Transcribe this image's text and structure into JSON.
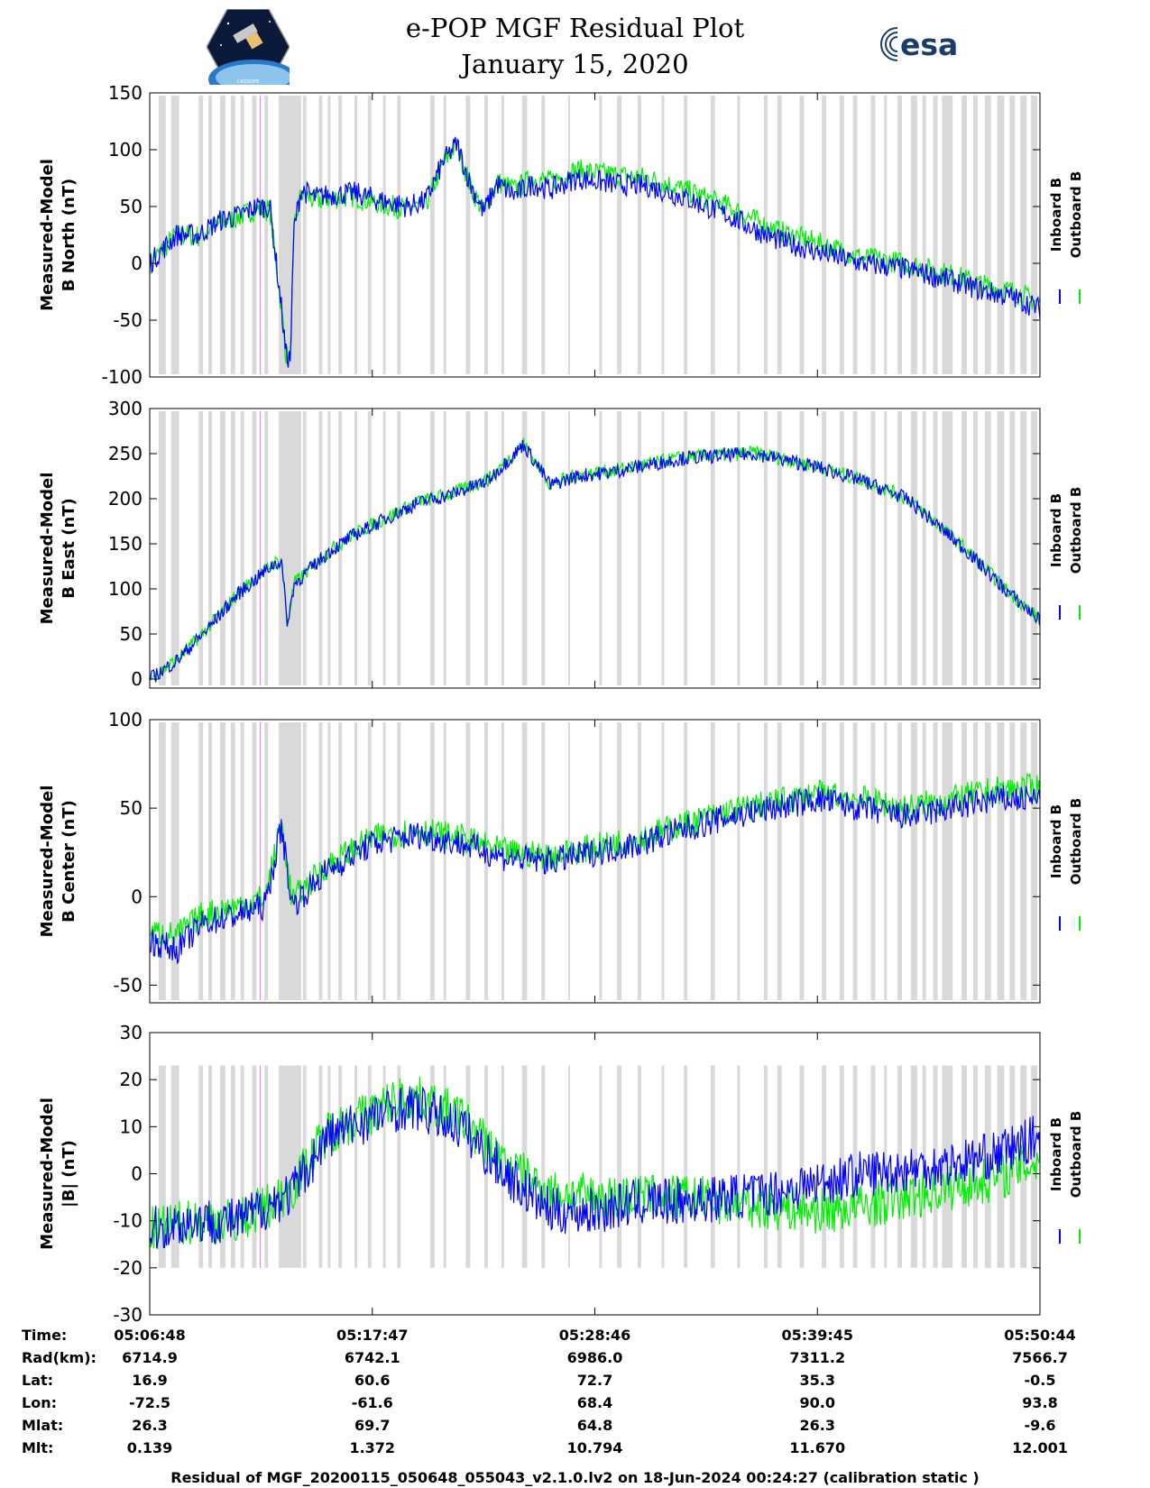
{
  "header": {
    "title_line1": "e-POP MGF Residual Plot",
    "title_line2": "January 15, 2020",
    "esa_logo_text": "esa",
    "cassiope_logo_text": "CASSIOPE"
  },
  "colors": {
    "inboard": "#0000ff",
    "outboard": "#00ee00",
    "gap_shading": "#d9d9d9",
    "marker": "#ff66ff"
  },
  "legend": {
    "inboard": "Inboard B",
    "outboard": "Outboard B"
  },
  "footer": "Residual of MGF_20200115_050648_055043_v2.1.0.lv2 on 18-Jun-2024 00:24:27 (calibration static )",
  "ephemeris": {
    "labels": [
      "Time:",
      "Rad(km):",
      "Lat:",
      "Lon:",
      "Mlat:",
      "Mlt:"
    ],
    "columns": [
      [
        "05:06:48",
        "6714.9",
        "16.9",
        "-72.5",
        "26.3",
        "0.139"
      ],
      [
        "05:17:47",
        "6742.1",
        "60.6",
        "-61.6",
        "69.7",
        "1.372"
      ],
      [
        "05:28:46",
        "6986.0",
        "72.7",
        "68.4",
        "64.8",
        "10.794"
      ],
      [
        "05:39:45",
        "7311.2",
        "35.3",
        "90.0",
        "26.3",
        "11.670"
      ],
      [
        "05:50:44",
        "7566.7",
        "-0.5",
        "93.8",
        "-9.6",
        "12.001"
      ]
    ]
  },
  "chart_data": [
    {
      "type": "line",
      "ylabel": [
        "Measured-Model",
        "B North (nT)"
      ],
      "ylim": [
        -100,
        150
      ],
      "yticks": [
        -100,
        -50,
        0,
        50,
        100,
        150
      ],
      "x": [
        0,
        0.03,
        0.055,
        0.08,
        0.1,
        0.12,
        0.135,
        0.148,
        0.153,
        0.158,
        0.162,
        0.17,
        0.185,
        0.2,
        0.23,
        0.26,
        0.29,
        0.31,
        0.33,
        0.345,
        0.36,
        0.375,
        0.39,
        0.41,
        0.43,
        0.45,
        0.48,
        0.52,
        0.56,
        0.6,
        0.65,
        0.7,
        0.75,
        0.8,
        0.85,
        0.9,
        0.94,
        0.97,
        1.0
      ],
      "series": [
        {
          "name": "Inboard B",
          "values": [
            0,
            25,
            25,
            38,
            42,
            50,
            50,
            -40,
            -80,
            -85,
            30,
            65,
            58,
            60,
            62,
            55,
            50,
            55,
            90,
            105,
            70,
            45,
            70,
            60,
            70,
            65,
            75,
            70,
            68,
            58,
            42,
            22,
            10,
            0,
            -5,
            -15,
            -25,
            -30,
            -40
          ]
        },
        {
          "name": "Outboard B",
          "values": [
            0,
            25,
            24,
            36,
            41,
            48,
            47,
            -40,
            -80,
            -85,
            28,
            62,
            55,
            57,
            59,
            52,
            48,
            52,
            88,
            105,
            68,
            45,
            72,
            65,
            75,
            72,
            82,
            78,
            75,
            65,
            50,
            30,
            18,
            5,
            0,
            -10,
            -20,
            -25,
            -35
          ]
        }
      ],
      "noise": 10
    },
    {
      "type": "line",
      "ylabel": [
        "Measured-Model",
        "B East (nT)"
      ],
      "ylim": [
        -10,
        300
      ],
      "yticks": [
        0,
        50,
        100,
        150,
        200,
        250,
        300
      ],
      "x": [
        0,
        0.03,
        0.06,
        0.1,
        0.14,
        0.148,
        0.155,
        0.162,
        0.2,
        0.23,
        0.26,
        0.3,
        0.34,
        0.38,
        0.42,
        0.45,
        0.48,
        0.52,
        0.6,
        0.68,
        0.75,
        0.8,
        0.85,
        0.88,
        0.92,
        0.96,
        1.0
      ],
      "series": [
        {
          "name": "Inboard B",
          "values": [
            0,
            20,
            50,
            95,
            128,
            130,
            60,
            105,
            140,
            160,
            175,
            195,
            205,
            220,
            260,
            215,
            225,
            230,
            245,
            250,
            235,
            220,
            200,
            175,
            140,
            100,
            65
          ]
        },
        {
          "name": "Outboard B",
          "values": [
            0,
            21,
            51,
            96,
            129,
            131,
            61,
            106,
            141,
            161,
            176,
            196,
            206,
            221,
            261,
            216,
            226,
            231,
            246,
            251,
            236,
            221,
            201,
            176,
            141,
            101,
            66
          ]
        }
      ],
      "noise": 8
    },
    {
      "type": "line",
      "ylabel": [
        "Measured-Model",
        "B Center (nT)"
      ],
      "ylim": [
        -60,
        100
      ],
      "yticks": [
        -50,
        0,
        50,
        100
      ],
      "x": [
        0,
        0.03,
        0.06,
        0.1,
        0.13,
        0.148,
        0.16,
        0.2,
        0.25,
        0.3,
        0.35,
        0.4,
        0.45,
        0.5,
        0.55,
        0.6,
        0.65,
        0.7,
        0.75,
        0.8,
        0.85,
        0.9,
        0.95,
        1.0
      ],
      "series": [
        {
          "name": "Inboard B",
          "values": [
            -25,
            -30,
            -15,
            -10,
            -5,
            40,
            -5,
            15,
            30,
            35,
            30,
            22,
            20,
            25,
            30,
            38,
            45,
            50,
            55,
            50,
            45,
            50,
            55,
            55
          ]
        },
        {
          "name": "Outboard B",
          "values": [
            -20,
            -22,
            -10,
            -5,
            0,
            42,
            -2,
            18,
            33,
            38,
            33,
            25,
            23,
            28,
            33,
            41,
            48,
            53,
            58,
            55,
            50,
            55,
            60,
            62
          ]
        }
      ],
      "noise": 8
    },
    {
      "type": "line",
      "ylabel": [
        "Measured-Model",
        "|B| (nT)"
      ],
      "ylim": [
        -30,
        30
      ],
      "yticks": [
        -30,
        -20,
        -10,
        0,
        10,
        20,
        30
      ],
      "x": [
        0,
        0.05,
        0.1,
        0.14,
        0.16,
        0.2,
        0.25,
        0.28,
        0.3,
        0.35,
        0.4,
        0.45,
        0.5,
        0.55,
        0.6,
        0.65,
        0.7,
        0.75,
        0.8,
        0.85,
        0.9,
        0.95,
        1.0
      ],
      "series": [
        {
          "name": "Inboard B",
          "values": [
            -12,
            -10,
            -10,
            -6,
            -4,
            8,
            12,
            14,
            14,
            10,
            0,
            -8,
            -8,
            -6,
            -6,
            -5,
            -4,
            -2,
            0,
            1,
            2,
            4,
            8
          ]
        },
        {
          "name": "Outboard B",
          "values": [
            -12,
            -10,
            -10,
            -6,
            -3,
            9,
            13,
            16,
            16,
            12,
            2,
            -4,
            -5,
            -5,
            -5,
            -6,
            -7,
            -8,
            -7,
            -5,
            -3,
            -1,
            3
          ]
        }
      ],
      "noise": 5
    }
  ]
}
